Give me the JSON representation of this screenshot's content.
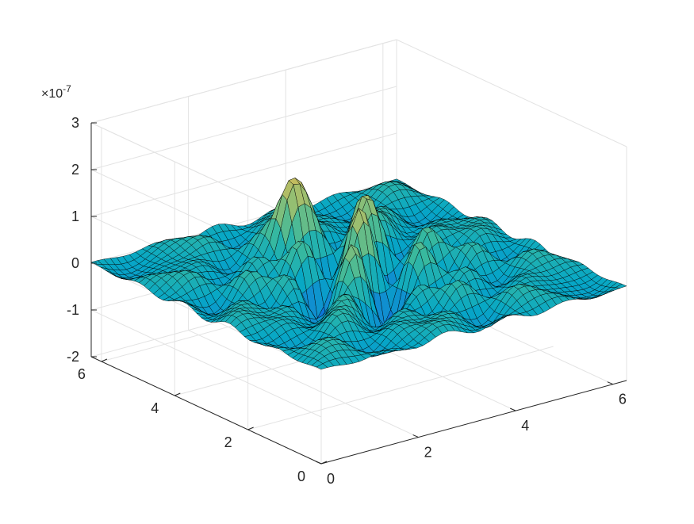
{
  "chart_data": {
    "type": "surface",
    "title": "",
    "xlabel": "",
    "ylabel": "",
    "zlabel": "",
    "xlim": [
      0,
      6.28
    ],
    "ylim": [
      0,
      6.28
    ],
    "zlim": [
      -2,
      3
    ],
    "z_exponent_label": "×10",
    "z_exponent_value": "-7",
    "x_ticks": [
      0,
      2,
      4,
      6
    ],
    "y_ticks": [
      0,
      2,
      4,
      6
    ],
    "z_ticks": [
      -2,
      -1,
      0,
      1,
      2,
      3
    ],
    "x_tick_labels": [
      "0",
      "2",
      "4",
      "6"
    ],
    "y_tick_labels": [
      "0",
      "2",
      "4",
      "6"
    ],
    "z_tick_labels": [
      "-2",
      "-1",
      "0",
      "1",
      "2",
      "3"
    ],
    "grid": true,
    "colormap": "parula",
    "colormap_colors": [
      "#352a87",
      "#0363e1",
      "#1485d4",
      "#06a7c6",
      "#38b99e",
      "#92bf73",
      "#d9ba56",
      "#fcce2e",
      "#f9fb0e"
    ],
    "edge_color": "#000000",
    "grid_resolution": 48,
    "notable_features": {
      "peak_values": [
        2.9,
        2.8,
        2.5,
        2.2
      ],
      "min_values": [
        -1.8,
        -1.7
      ]
    }
  }
}
